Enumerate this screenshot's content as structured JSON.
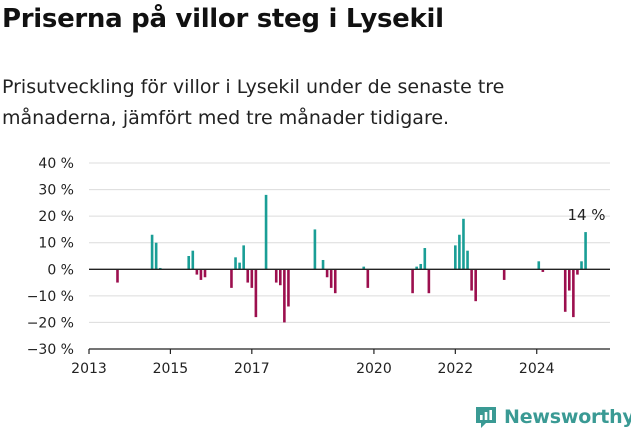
{
  "title": "Priserna på villor steg i Lysekil",
  "subtitle": "Prisutveckling för villor i Lysekil under de senaste tre månaderna, jämfört med tre månader tidigare.",
  "brand": {
    "name": "Newsworthy",
    "logo_icon": "newsworthy-logo-icon"
  },
  "chart_data": {
    "type": "bar",
    "ylim": [
      -30,
      40
    ],
    "yticks": [
      40,
      30,
      20,
      10,
      0,
      -10,
      -20,
      -30
    ],
    "ytick_labels": [
      "40 %",
      "30 %",
      "20 %",
      "10 %",
      "0 %",
      "−10 %",
      "−20 %",
      "−30 %"
    ],
    "xlim": [
      2013,
      2025.8
    ],
    "xticks": [
      2013,
      2015,
      2017,
      2020,
      2022,
      2024
    ],
    "xtick_labels": [
      "2013",
      "2015",
      "2017",
      "2020",
      "2022",
      "2024"
    ],
    "grid": true,
    "colors": {
      "positive": "#1a9e96",
      "negative": "#9c0f4e"
    },
    "annotation": {
      "text": "14 %",
      "x": 2025.1,
      "y": 14
    },
    "values": [
      {
        "x": 2013.7,
        "y": -5
      },
      {
        "x": 2014.55,
        "y": 13
      },
      {
        "x": 2014.65,
        "y": 10
      },
      {
        "x": 2014.75,
        "y": 0.5
      },
      {
        "x": 2015.45,
        "y": 5
      },
      {
        "x": 2015.55,
        "y": 7
      },
      {
        "x": 2015.65,
        "y": -2
      },
      {
        "x": 2015.75,
        "y": -4
      },
      {
        "x": 2015.85,
        "y": -3
      },
      {
        "x": 2016.5,
        "y": -7
      },
      {
        "x": 2016.6,
        "y": 4.5
      },
      {
        "x": 2016.7,
        "y": 2.5
      },
      {
        "x": 2016.8,
        "y": 9
      },
      {
        "x": 2016.9,
        "y": -5
      },
      {
        "x": 2017.0,
        "y": -7
      },
      {
        "x": 2017.1,
        "y": -18
      },
      {
        "x": 2017.35,
        "y": 28
      },
      {
        "x": 2017.6,
        "y": -5
      },
      {
        "x": 2017.7,
        "y": -6
      },
      {
        "x": 2017.8,
        "y": -20
      },
      {
        "x": 2017.9,
        "y": -14
      },
      {
        "x": 2018.55,
        "y": 15
      },
      {
        "x": 2018.75,
        "y": 3.5
      },
      {
        "x": 2018.85,
        "y": -3
      },
      {
        "x": 2018.95,
        "y": -7
      },
      {
        "x": 2019.05,
        "y": -9
      },
      {
        "x": 2019.75,
        "y": 1
      },
      {
        "x": 2019.85,
        "y": -7
      },
      {
        "x": 2020.95,
        "y": -9
      },
      {
        "x": 2021.05,
        "y": 1
      },
      {
        "x": 2021.15,
        "y": 2
      },
      {
        "x": 2021.25,
        "y": 8
      },
      {
        "x": 2021.35,
        "y": -9
      },
      {
        "x": 2022.0,
        "y": 9
      },
      {
        "x": 2022.1,
        "y": 13
      },
      {
        "x": 2022.2,
        "y": 19
      },
      {
        "x": 2022.3,
        "y": 7
      },
      {
        "x": 2022.4,
        "y": -8
      },
      {
        "x": 2022.5,
        "y": -12
      },
      {
        "x": 2023.2,
        "y": -4
      },
      {
        "x": 2024.05,
        "y": 3
      },
      {
        "x": 2024.15,
        "y": -1
      },
      {
        "x": 2024.7,
        "y": -16
      },
      {
        "x": 2024.8,
        "y": -8
      },
      {
        "x": 2024.9,
        "y": -18
      },
      {
        "x": 2025.0,
        "y": -2
      },
      {
        "x": 2025.1,
        "y": 3
      },
      {
        "x": 2025.2,
        "y": 14
      }
    ]
  }
}
